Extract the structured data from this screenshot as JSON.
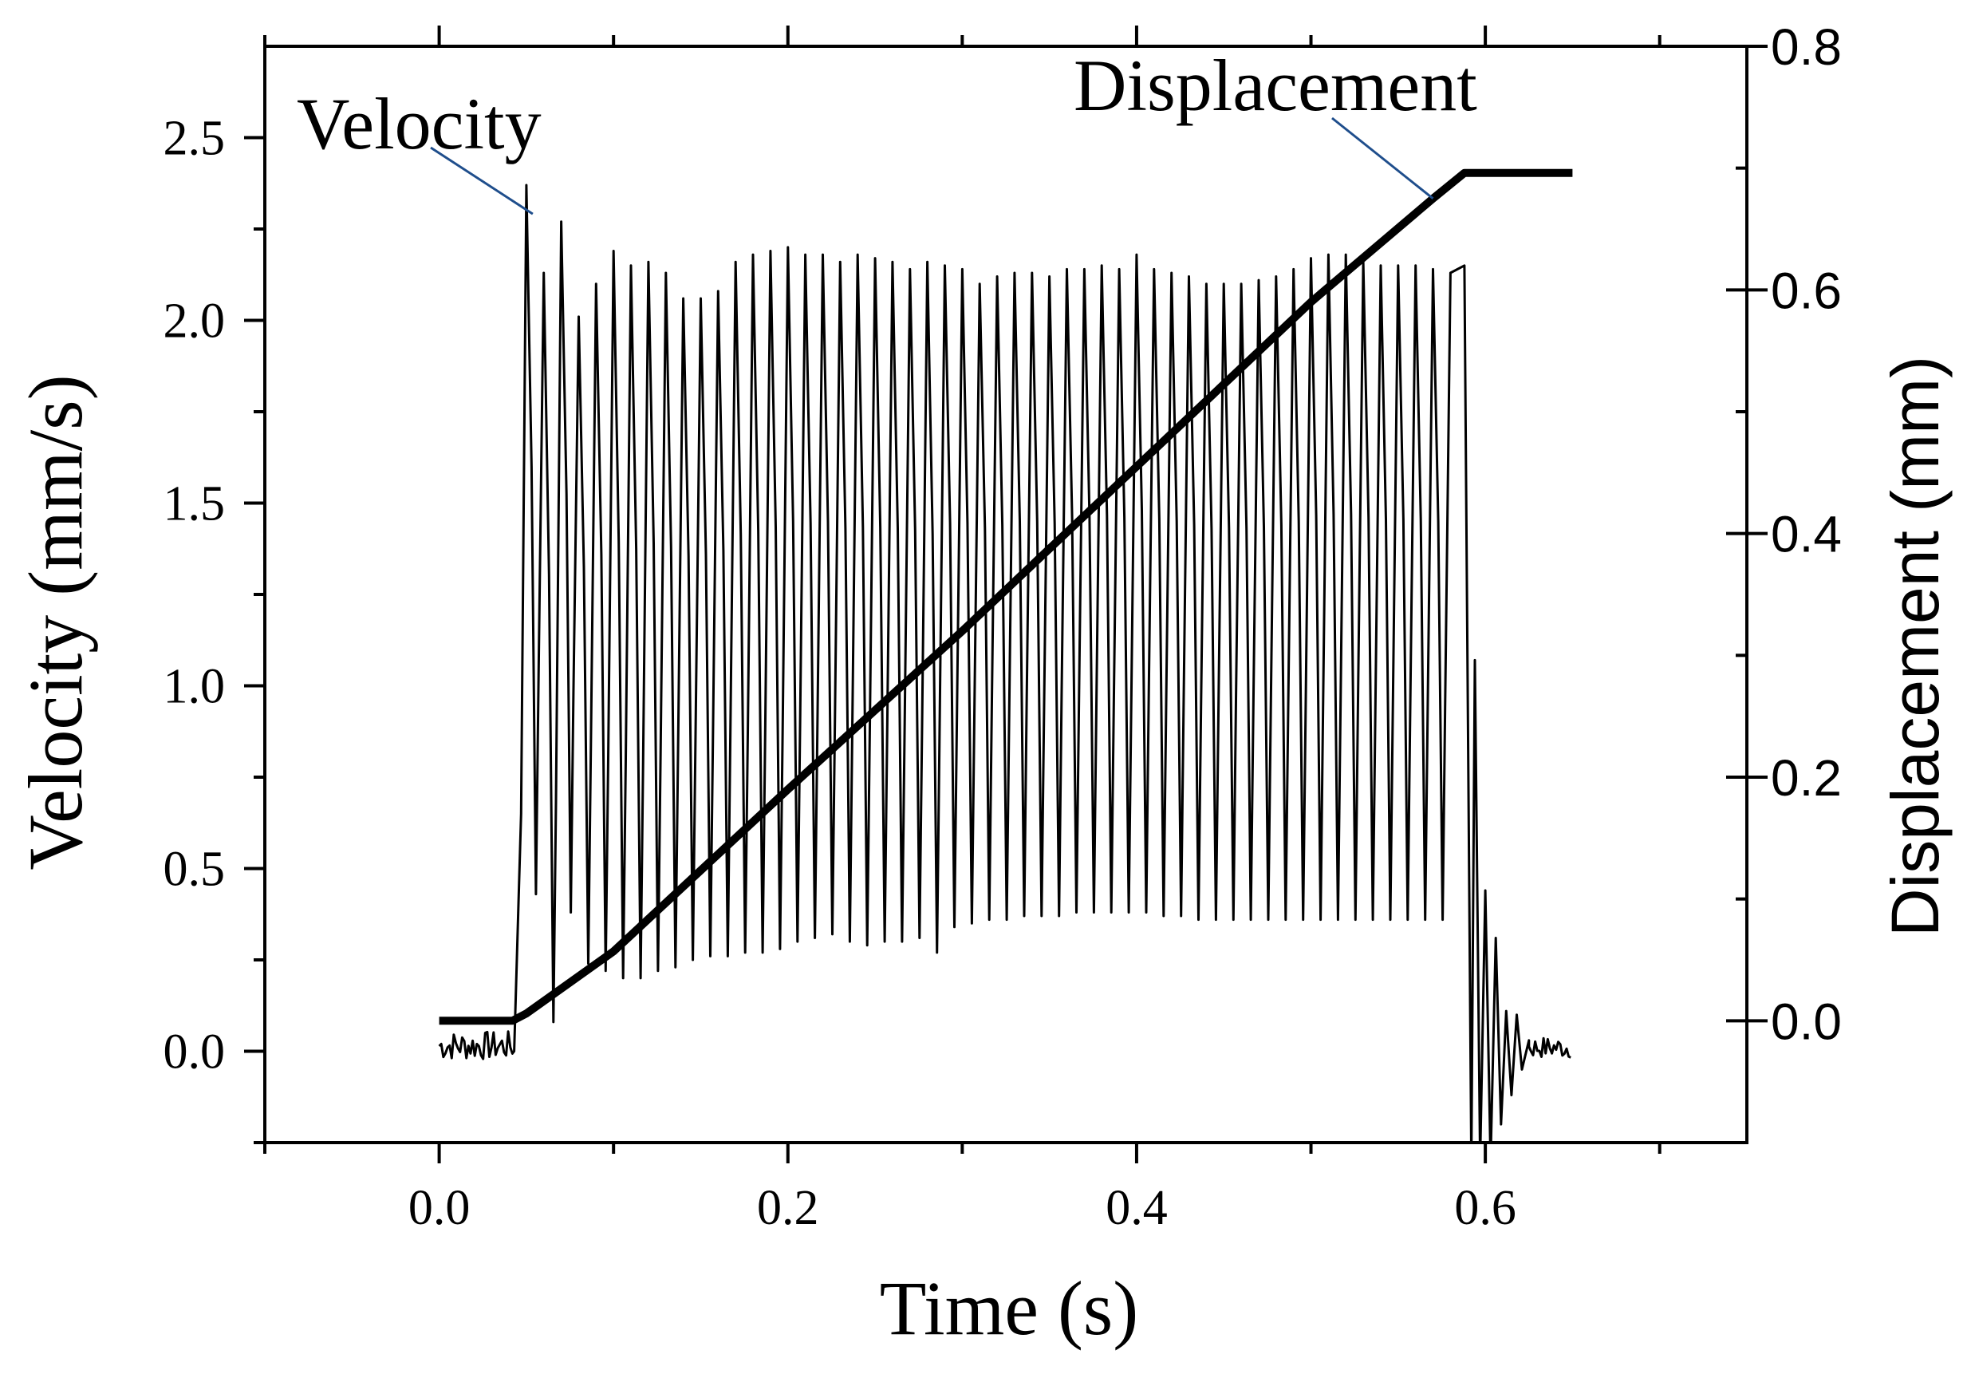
{
  "chart_data": {
    "type": "line",
    "x_axis": {
      "label": "Time (s)",
      "range": [
        -0.1,
        0.75
      ],
      "ticks": [
        0.0,
        0.2,
        0.4,
        0.6
      ],
      "tick_labels": [
        "0.0",
        "0.2",
        "0.4",
        "0.6"
      ],
      "minor_ticks": [
        -0.1,
        0.1,
        0.3,
        0.5,
        0.7
      ]
    },
    "y_axis_left": {
      "label": "Velocity  (mm/s)",
      "range": [
        -0.25,
        2.75
      ],
      "ticks": [
        0.0,
        0.5,
        1.0,
        1.5,
        2.0,
        2.5
      ],
      "tick_labels": [
        "0.0",
        "0.5",
        "1.0",
        "1.5",
        "2.0",
        "2.5"
      ],
      "minor_ticks": [
        -0.25,
        0.25,
        0.75,
        1.25,
        1.75,
        2.25
      ]
    },
    "y_axis_right": {
      "label": "Displacement  (mm)",
      "range": [
        -0.1,
        0.8
      ],
      "ticks": [
        0.0,
        0.2,
        0.4,
        0.6,
        0.8
      ],
      "tick_labels": [
        "0.0",
        "0.2",
        "0.4",
        "0.6",
        "0.8"
      ],
      "minor_ticks": [
        0.1,
        0.3,
        0.5,
        0.7
      ]
    },
    "series": [
      {
        "name": "Velocity",
        "axis": "left",
        "baseline_noise_before": {
          "t_start": 0.0,
          "t_end": 0.042,
          "amplitude": 0.04
        },
        "oscillation": {
          "t_start": 0.045,
          "t_end": 0.588,
          "peak_times": [
            0.05,
            0.06,
            0.07,
            0.08,
            0.09,
            0.1,
            0.11,
            0.12,
            0.13,
            0.14,
            0.15,
            0.16,
            0.17,
            0.18,
            0.19,
            0.2,
            0.21,
            0.22,
            0.23,
            0.24,
            0.25,
            0.26,
            0.27,
            0.28,
            0.29,
            0.3,
            0.31,
            0.32,
            0.33,
            0.34,
            0.35,
            0.36,
            0.37,
            0.38,
            0.39,
            0.4,
            0.41,
            0.42,
            0.43,
            0.44,
            0.45,
            0.46,
            0.47,
            0.48,
            0.49,
            0.5,
            0.51,
            0.52,
            0.53,
            0.54,
            0.55,
            0.56,
            0.57,
            0.58
          ],
          "peak_values": [
            2.37,
            2.13,
            2.27,
            2.01,
            2.1,
            2.19,
            2.15,
            2.16,
            2.13,
            2.06,
            2.06,
            2.08,
            2.16,
            2.18,
            2.19,
            2.2,
            2.18,
            2.18,
            2.16,
            2.18,
            2.17,
            2.16,
            2.14,
            2.16,
            2.15,
            2.14,
            2.1,
            2.12,
            2.13,
            2.13,
            2.12,
            2.14,
            2.14,
            2.15,
            2.14,
            2.18,
            2.14,
            2.13,
            2.12,
            2.1,
            2.1,
            2.1,
            2.11,
            2.12,
            2.14,
            2.17,
            2.18,
            2.18,
            2.16,
            2.15,
            2.15,
            2.15,
            2.14,
            2.13
          ],
          "trough_values": [
            0.43,
            0.08,
            0.38,
            0.24,
            0.22,
            0.2,
            0.2,
            0.22,
            0.23,
            0.25,
            0.26,
            0.26,
            0.27,
            0.27,
            0.28,
            0.3,
            0.31,
            0.32,
            0.3,
            0.29,
            0.3,
            0.3,
            0.31,
            0.27,
            0.34,
            0.35,
            0.36,
            0.36,
            0.37,
            0.37,
            0.37,
            0.38,
            0.38,
            0.38,
            0.38,
            0.38,
            0.37,
            0.37,
            0.36,
            0.36,
            0.36,
            0.36,
            0.36,
            0.36,
            0.36,
            0.36,
            0.36,
            0.36,
            0.36,
            0.36,
            0.36,
            0.36,
            0.36
          ]
        },
        "decay_after": [
          {
            "t": 0.588,
            "v": 2.15
          },
          {
            "t": 0.592,
            "v": -0.3
          },
          {
            "t": 0.594,
            "v": 1.07
          },
          {
            "t": 0.597,
            "v": -0.3
          },
          {
            "t": 0.6,
            "v": 0.44
          },
          {
            "t": 0.603,
            "v": -0.3
          },
          {
            "t": 0.606,
            "v": 0.31
          },
          {
            "t": 0.609,
            "v": -0.2
          },
          {
            "t": 0.612,
            "v": 0.11
          },
          {
            "t": 0.615,
            "v": -0.12
          },
          {
            "t": 0.618,
            "v": 0.1
          },
          {
            "t": 0.621,
            "v": -0.05
          },
          {
            "t": 0.625,
            "v": 0.03
          }
        ],
        "baseline_noise_after": {
          "t_start": 0.625,
          "t_end": 0.65,
          "amplitude": 0.03
        }
      },
      {
        "name": "Displacement",
        "axis": "right",
        "points": [
          {
            "t": 0.0,
            "d": 0.0
          },
          {
            "t": 0.042,
            "d": 0.0
          },
          {
            "t": 0.05,
            "d": 0.006
          },
          {
            "t": 0.1,
            "d": 0.057
          },
          {
            "t": 0.2,
            "d": 0.19
          },
          {
            "t": 0.3,
            "d": 0.32
          },
          {
            "t": 0.4,
            "d": 0.455
          },
          {
            "t": 0.5,
            "d": 0.59
          },
          {
            "t": 0.57,
            "d": 0.675
          },
          {
            "t": 0.588,
            "d": 0.696
          },
          {
            "t": 0.65,
            "d": 0.696
          }
        ]
      }
    ],
    "annotations": [
      {
        "text": "Velocity",
        "points_to": {
          "series": "Velocity",
          "t": 0.05,
          "v": 2.3
        }
      },
      {
        "text": "Displacement",
        "points_to": {
          "series": "Displacement",
          "t": 0.57,
          "d": 0.675
        }
      }
    ],
    "grid": false,
    "legend": "none"
  }
}
